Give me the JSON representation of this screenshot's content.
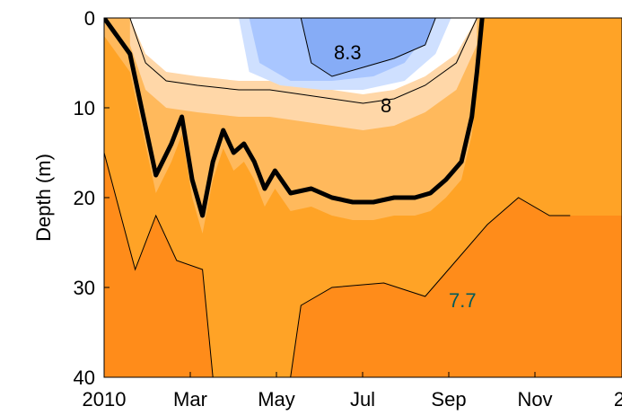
{
  "chart_data": {
    "type": "heatmap",
    "ylabel": "Depth (m)",
    "xlabel": "",
    "title": "",
    "x_ticks": [
      "2010",
      "Mar",
      "May",
      "Jul",
      "Sep",
      "Nov",
      "2"
    ],
    "y_ticks": [
      "0",
      "10",
      "20",
      "30",
      "40"
    ],
    "ylim": [
      40,
      0
    ],
    "y_reversed": true,
    "grid": false,
    "contour_labels": [
      "8.3",
      "8",
      "7.7"
    ],
    "colors": {
      "deep_orange": "#ff8c1a",
      "orange": "#ffa326",
      "light_orange": "#ffb95c",
      "pale_orange": "#ffd7a8",
      "white": "#ffffff",
      "pale_blue": "#cfe0ff",
      "light_blue": "#a9c6ff",
      "blue": "#86acf6"
    },
    "bold_contour": {
      "label": "",
      "points": [
        [
          0.0,
          0
        ],
        [
          0.05,
          4
        ],
        [
          0.1,
          17.5
        ],
        [
          0.13,
          14
        ],
        [
          0.15,
          11
        ],
        [
          0.17,
          18
        ],
        [
          0.19,
          22
        ],
        [
          0.21,
          16
        ],
        [
          0.23,
          12.5
        ],
        [
          0.25,
          15
        ],
        [
          0.27,
          14
        ],
        [
          0.29,
          16
        ],
        [
          0.31,
          19
        ],
        [
          0.33,
          17
        ],
        [
          0.36,
          19.5
        ],
        [
          0.4,
          19
        ],
        [
          0.44,
          20
        ],
        [
          0.48,
          20.5
        ],
        [
          0.52,
          20.5
        ],
        [
          0.56,
          20
        ],
        [
          0.6,
          20
        ],
        [
          0.63,
          19.5
        ],
        [
          0.66,
          18
        ],
        [
          0.69,
          16
        ],
        [
          0.71,
          11
        ],
        [
          0.72,
          6
        ],
        [
          0.73,
          0
        ]
      ]
    },
    "contour_8_3": {
      "label": "8.3",
      "points": [
        [
          0.38,
          0
        ],
        [
          0.4,
          5
        ],
        [
          0.44,
          6.5
        ],
        [
          0.5,
          5.5
        ],
        [
          0.56,
          4.5
        ],
        [
          0.62,
          3
        ],
        [
          0.64,
          0
        ]
      ]
    },
    "contour_8": {
      "label": "8",
      "points": [
        [
          0.05,
          0
        ],
        [
          0.08,
          5
        ],
        [
          0.12,
          7
        ],
        [
          0.18,
          7.5
        ],
        [
          0.26,
          8
        ],
        [
          0.32,
          8
        ],
        [
          0.38,
          8.5
        ],
        [
          0.44,
          9
        ],
        [
          0.5,
          9.5
        ],
        [
          0.56,
          9
        ],
        [
          0.62,
          7.5
        ],
        [
          0.68,
          5
        ],
        [
          0.72,
          0
        ]
      ]
    },
    "contour_7_7": {
      "label": "7.7",
      "points": [
        [
          0.0,
          15
        ],
        [
          0.06,
          28
        ],
        [
          0.1,
          22
        ],
        [
          0.14,
          27
        ],
        [
          0.19,
          28
        ],
        [
          0.21,
          40
        ],
        [
          0.36,
          40
        ],
        [
          0.38,
          32
        ],
        [
          0.44,
          30
        ],
        [
          0.54,
          29.5
        ],
        [
          0.62,
          31
        ],
        [
          0.68,
          27
        ],
        [
          0.74,
          23
        ],
        [
          0.8,
          20
        ],
        [
          0.86,
          22
        ],
        [
          0.9,
          22
        ]
      ]
    }
  }
}
